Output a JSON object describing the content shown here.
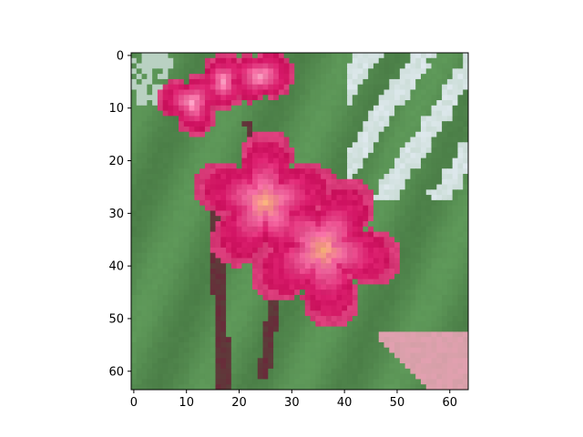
{
  "figure": {
    "type": "image-plot",
    "image_description": "Pixelated 64x64 image of pink-magenta plumeria (frangipani) flowers with green leaves and light background",
    "image_size": [
      64,
      64
    ]
  },
  "axes": {
    "x": {
      "ticks": [
        0,
        10,
        20,
        30,
        40,
        50,
        60
      ],
      "tick_labels": [
        "0",
        "10",
        "20",
        "30",
        "40",
        "50",
        "60"
      ],
      "range": [
        -0.5,
        63.5
      ]
    },
    "y": {
      "ticks": [
        0,
        10,
        20,
        30,
        40,
        50,
        60
      ],
      "tick_labels": [
        "0",
        "10",
        "20",
        "30",
        "40",
        "50",
        "60"
      ],
      "range": [
        -0.5,
        63.5
      ],
      "inverted": true
    }
  },
  "colors": {
    "flower_magenta": "#d81a6a",
    "flower_pink": "#f06aa0",
    "flower_center": "#f7b07a",
    "leaf_green": "#5f9a5a",
    "leaf_dark": "#3d6b3a",
    "sky_light": "#dfe9ee",
    "stem_maroon": "#6a2a3a"
  }
}
